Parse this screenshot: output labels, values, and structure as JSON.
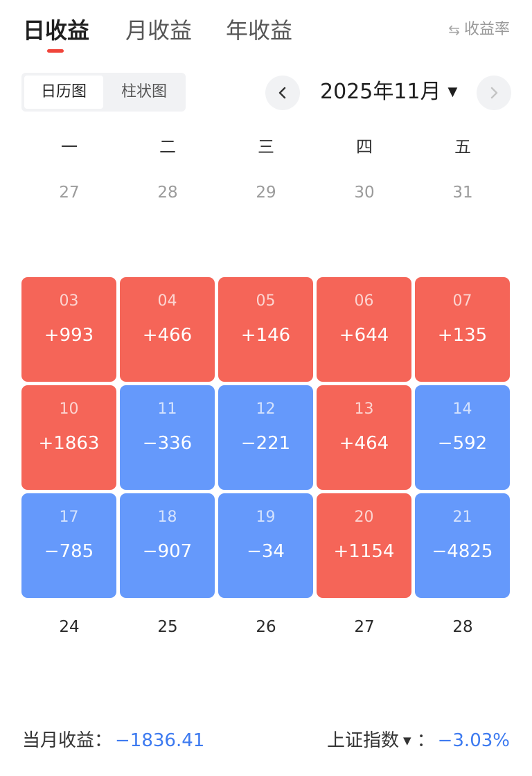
{
  "tabs": [
    {
      "label": "日收益"
    },
    {
      "label": "月收益"
    },
    {
      "label": "年收益"
    }
  ],
  "rate_link": {
    "label": "收益率",
    "icon": "swap-icon"
  },
  "view_toggle": {
    "calendar": "日历图",
    "bar": "柱状图"
  },
  "month_nav": {
    "label": "2025年11月",
    "prev_icon": "chevron-left-icon",
    "next_icon": "chevron-right-icon",
    "caret_icon": "caret-down-icon"
  },
  "weekdays": [
    "一",
    "二",
    "三",
    "四",
    "五"
  ],
  "prev_month_days": [
    "27",
    "28",
    "29",
    "30",
    "31"
  ],
  "colors": {
    "gain": "#f56558",
    "loss": "#6599fb",
    "accent": "#f0443a",
    "value_blue": "#3d7af0"
  },
  "weeks": [
    [
      {
        "day": "03",
        "value": "+993",
        "type": "gain"
      },
      {
        "day": "04",
        "value": "+466",
        "type": "gain"
      },
      {
        "day": "05",
        "value": "+146",
        "type": "gain"
      },
      {
        "day": "06",
        "value": "+644",
        "type": "gain"
      },
      {
        "day": "07",
        "value": "+135",
        "type": "gain"
      }
    ],
    [
      {
        "day": "10",
        "value": "+1863",
        "type": "gain"
      },
      {
        "day": "11",
        "value": "−336",
        "type": "loss"
      },
      {
        "day": "12",
        "value": "−221",
        "type": "loss"
      },
      {
        "day": "13",
        "value": "+464",
        "type": "gain"
      },
      {
        "day": "14",
        "value": "−592",
        "type": "loss"
      }
    ],
    [
      {
        "day": "17",
        "value": "−785",
        "type": "loss"
      },
      {
        "day": "18",
        "value": "−907",
        "type": "loss"
      },
      {
        "day": "19",
        "value": "−34",
        "type": "loss"
      },
      {
        "day": "20",
        "value": "+1154",
        "type": "gain"
      },
      {
        "day": "21",
        "value": "−4825",
        "type": "loss"
      }
    ]
  ],
  "trailing_days": [
    "24",
    "25",
    "26",
    "27",
    "28"
  ],
  "footer": {
    "month_label": "当月收益：",
    "month_value": "−1836.41",
    "index_label": "上证指数",
    "index_sep": "：",
    "index_value": "−3.03%"
  }
}
